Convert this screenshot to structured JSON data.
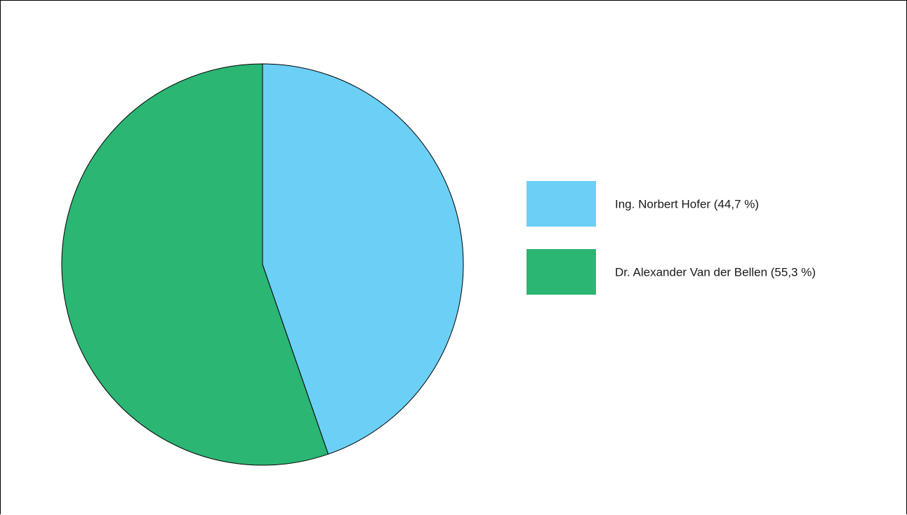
{
  "chart_data": {
    "type": "pie",
    "title": "",
    "slices": [
      {
        "label": "Ing. Norbert Hofer (44,7 %)",
        "value": 44.7,
        "color": "#6ccff6"
      },
      {
        "label": "Dr. Alexander Van der Bellen (55,3 %)",
        "value": 55.3,
        "color": "#2bb673"
      }
    ],
    "start_angle": "12 o'clock",
    "direction": "clockwise",
    "legend_position": "right",
    "slice_outline_color": "#000000"
  }
}
